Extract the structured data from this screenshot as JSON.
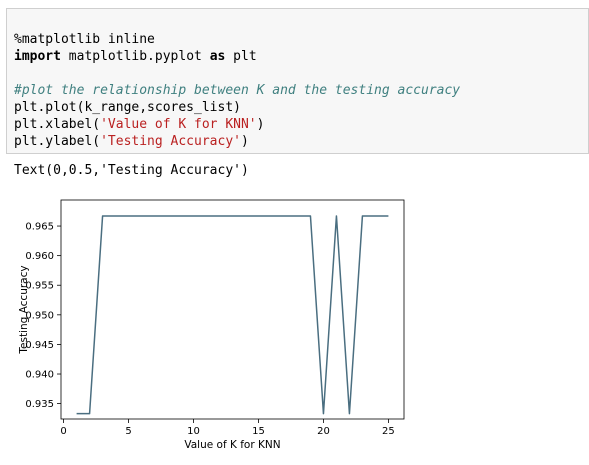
{
  "input_cell": {
    "lines": [
      {
        "parts": [
          {
            "t": "%matplotlib inline",
            "c": ""
          }
        ]
      },
      {
        "parts": [
          {
            "t": "import",
            "c": "kw"
          },
          {
            "t": " matplotlib.pyplot ",
            "c": ""
          },
          {
            "t": "as",
            "c": "kw"
          },
          {
            "t": " plt",
            "c": ""
          }
        ]
      },
      {
        "parts": [
          {
            "t": "",
            "c": ""
          }
        ]
      },
      {
        "parts": [
          {
            "t": "#plot the relationship between K and the testing accuracy",
            "c": "cm"
          }
        ]
      },
      {
        "parts": [
          {
            "t": "plt.plot(k_range,scores_list)",
            "c": ""
          }
        ]
      },
      {
        "parts": [
          {
            "t": "plt.xlabel(",
            "c": ""
          },
          {
            "t": "'Value of K for KNN'",
            "c": "st"
          },
          {
            "t": ")",
            "c": ""
          }
        ]
      },
      {
        "parts": [
          {
            "t": "plt.ylabel(",
            "c": ""
          },
          {
            "t": "'Testing Accuracy'",
            "c": "st"
          },
          {
            "t": ")",
            "c": ""
          }
        ]
      }
    ]
  },
  "output_text": "Text(0,0.5,'Testing Accuracy')",
  "chart_data": {
    "type": "line",
    "xlabel": "Value of K for KNN",
    "ylabel": "Testing Accuracy",
    "xlim": [
      -0.2,
      26.2
    ],
    "ylim": [
      0.9324,
      0.9694
    ],
    "xticks": [
      0,
      5,
      10,
      15,
      20,
      25
    ],
    "yticks": [
      0.935,
      0.94,
      0.945,
      0.95,
      0.955,
      0.96,
      0.965
    ],
    "ytick_labels": [
      "0.935",
      "0.940",
      "0.945",
      "0.950",
      "0.955",
      "0.960",
      "0.965"
    ],
    "grid": false,
    "line_color": "#4a6e80",
    "x": [
      1,
      2,
      3,
      4,
      5,
      6,
      7,
      8,
      9,
      10,
      11,
      12,
      13,
      14,
      15,
      16,
      17,
      18,
      19,
      20,
      21,
      22,
      23,
      24,
      25
    ],
    "y": [
      0.9333,
      0.9333,
      0.9667,
      0.9667,
      0.9667,
      0.9667,
      0.9667,
      0.9667,
      0.9667,
      0.9667,
      0.9667,
      0.9667,
      0.9667,
      0.9667,
      0.9667,
      0.9667,
      0.9667,
      0.9667,
      0.9667,
      0.9333,
      0.9667,
      0.9333,
      0.9667,
      0.9667,
      0.9667
    ]
  }
}
